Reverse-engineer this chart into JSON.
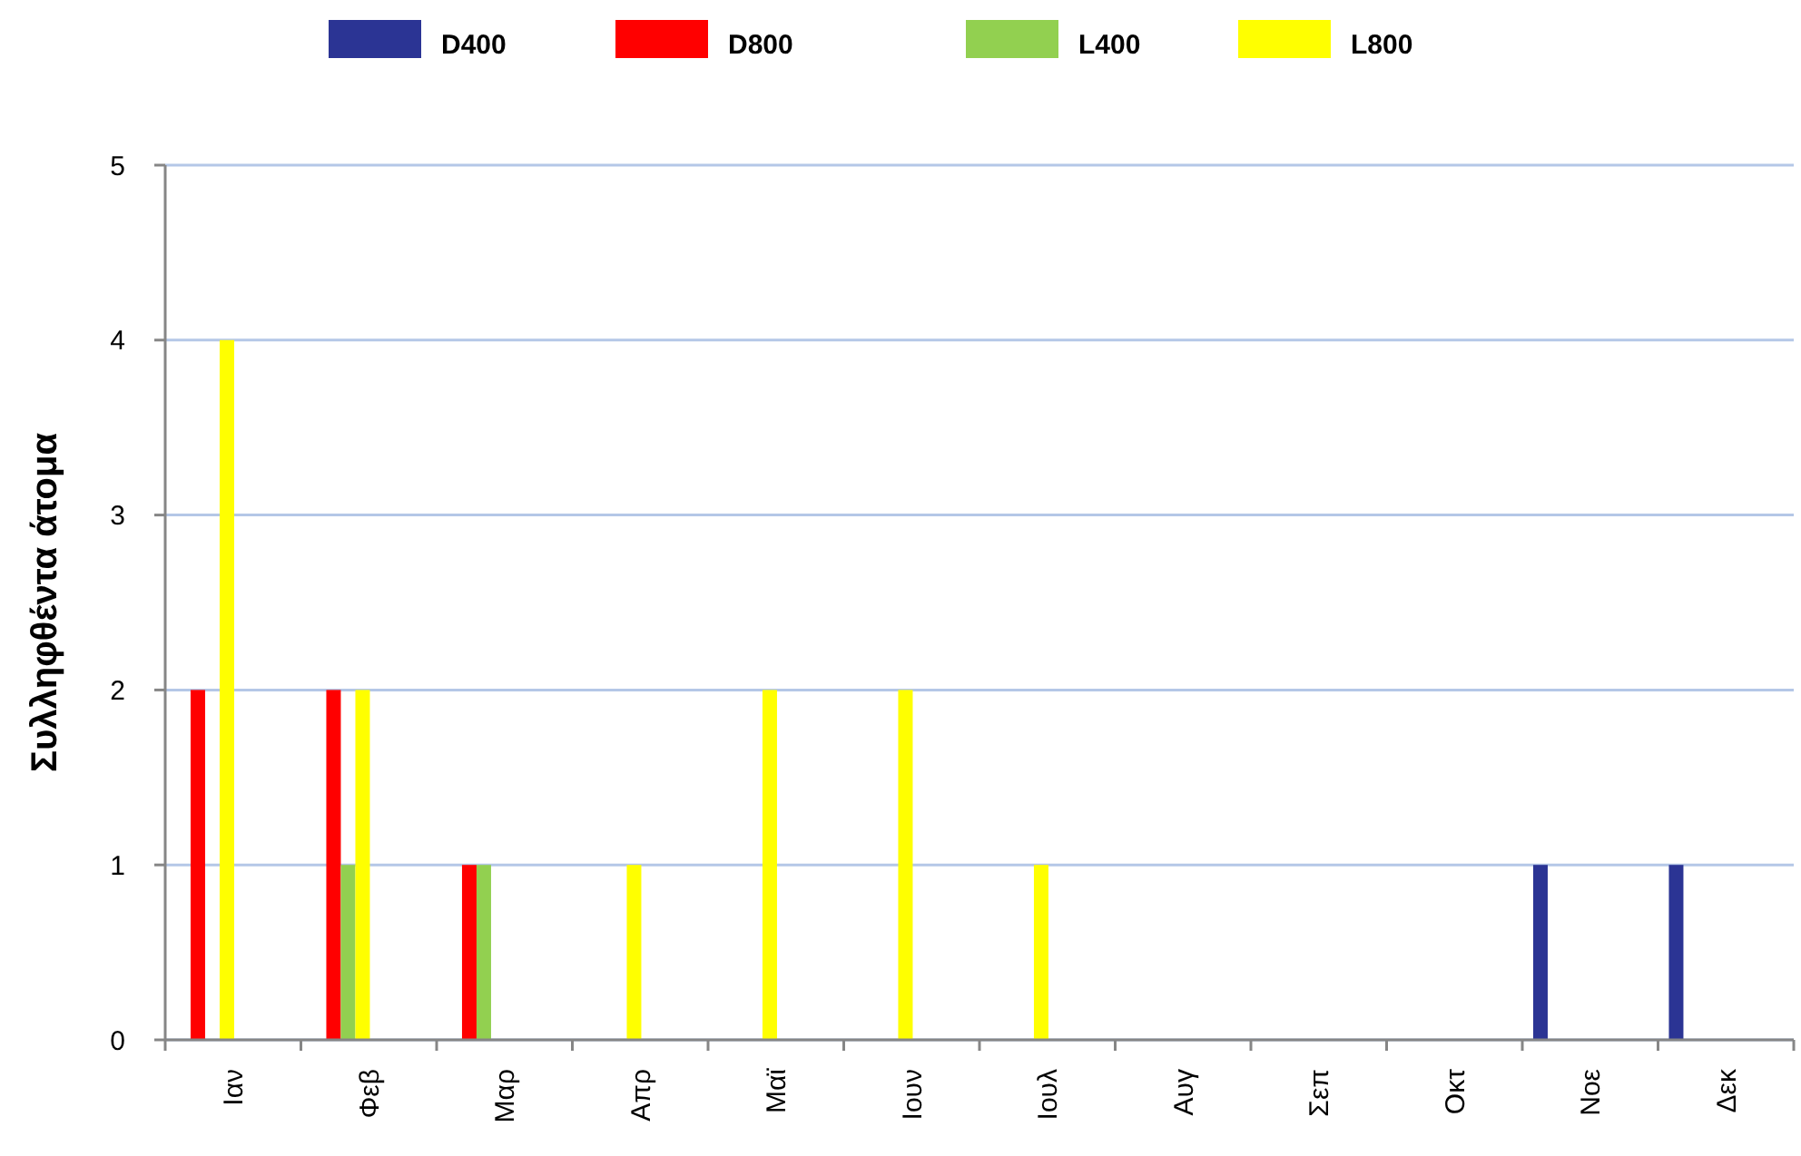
{
  "chart_data": {
    "type": "bar",
    "ylabel": "Συλληφθέντα άτομα",
    "categories": [
      "Ιαν",
      "Φεβ",
      "Μαρ",
      "Απρ",
      "Μαϊ",
      "Ιουν",
      "Ιουλ",
      "Αυγ",
      "Σεπ",
      "Οκτ",
      "Νοε",
      "Δεκ"
    ],
    "series": [
      {
        "name": "D400",
        "color": "#2b3494",
        "values": [
          0,
          0,
          0,
          0,
          0,
          0,
          0,
          0,
          0,
          0,
          1,
          1
        ]
      },
      {
        "name": "D800",
        "color": "#ff0000",
        "values": [
          2,
          2,
          1,
          0,
          0,
          0,
          0,
          0,
          0,
          0,
          0,
          0
        ]
      },
      {
        "name": "L400",
        "color": "#92d050",
        "values": [
          0,
          1,
          1,
          0,
          0,
          0,
          0,
          0,
          0,
          0,
          0,
          0
        ]
      },
      {
        "name": "L800",
        "color": "#ffff00",
        "values": [
          4,
          2,
          0,
          1,
          2,
          2,
          1,
          0,
          0,
          0,
          0,
          0
        ]
      }
    ],
    "ylim": [
      0,
      5
    ],
    "yticks": [
      0,
      1,
      2,
      3,
      4,
      5
    ],
    "grid": "y",
    "legend": "top"
  }
}
